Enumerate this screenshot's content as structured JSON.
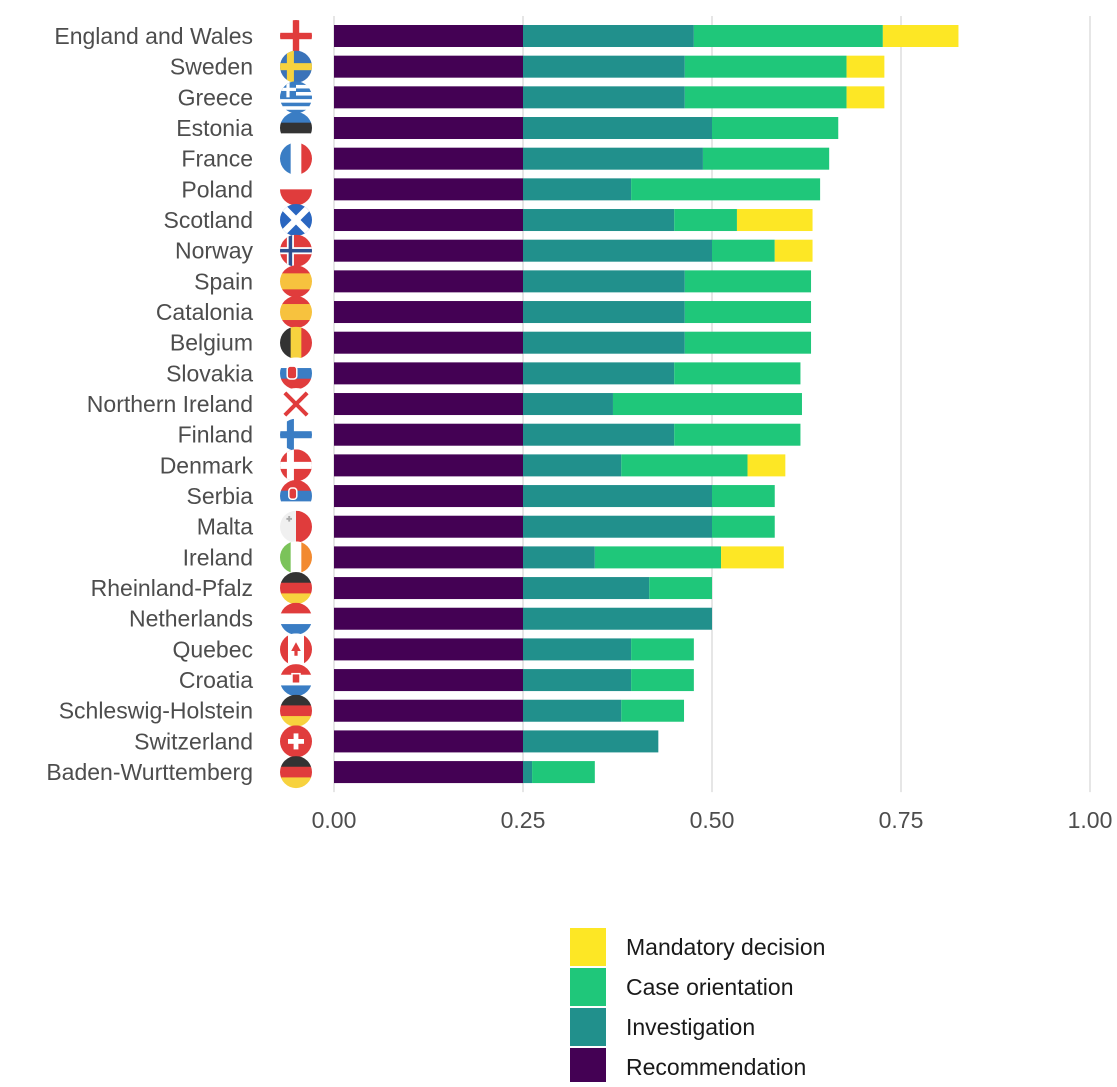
{
  "chart_data": {
    "type": "bar",
    "orientation": "horizontal",
    "stacked": true,
    "xlabel": "",
    "ylabel": "",
    "xlim": [
      0,
      1
    ],
    "x_ticks": [
      "0.00",
      "0.25",
      "0.50",
      "0.75",
      "1.00"
    ],
    "x_tick_values": [
      0,
      0.25,
      0.5,
      0.75,
      1.0
    ],
    "grid": true,
    "legend_position": "bottom",
    "categories": [
      "England and Wales",
      "Sweden",
      "Greece",
      "Estonia",
      "France",
      "Poland",
      "Scotland",
      "Norway",
      "Spain",
      "Catalonia",
      "Belgium",
      "Slovakia",
      "Northern Ireland",
      "Finland",
      "Denmark",
      "Serbia",
      "Malta",
      "Ireland",
      "Rheinland-Pfalz",
      "Netherlands",
      "Quebec",
      "Croatia",
      "Schleswig-Holstein",
      "Switzerland",
      "Baden-Wurttemberg"
    ],
    "series": [
      {
        "name": "Recommendation",
        "color": "#440154",
        "values": [
          0.25,
          0.25,
          0.25,
          0.25,
          0.25,
          0.25,
          0.25,
          0.25,
          0.25,
          0.25,
          0.25,
          0.25,
          0.25,
          0.25,
          0.25,
          0.25,
          0.25,
          0.25,
          0.25,
          0.25,
          0.25,
          0.25,
          0.25,
          0.25,
          0.25
        ]
      },
      {
        "name": "Investigation",
        "color": "#21908c",
        "values": [
          0.226,
          0.214,
          0.214,
          0.25,
          0.238,
          0.143,
          0.2,
          0.25,
          0.214,
          0.214,
          0.214,
          0.2,
          0.119,
          0.2,
          0.13,
          0.25,
          0.25,
          0.095,
          0.167,
          0.25,
          0.143,
          0.143,
          0.13,
          0.179,
          0.012
        ]
      },
      {
        "name": "Case orientation",
        "color": "#1fc77a",
        "values": [
          0.25,
          0.214,
          0.214,
          0.167,
          0.167,
          0.25,
          0.083,
          0.083,
          0.167,
          0.167,
          0.167,
          0.167,
          0.25,
          0.167,
          0.167,
          0.083,
          0.083,
          0.167,
          0.083,
          0.0,
          0.083,
          0.083,
          0.083,
          0.0,
          0.083
        ]
      },
      {
        "name": "Mandatory decision",
        "color": "#fde725",
        "values": [
          0.1,
          0.05,
          0.05,
          0.0,
          0.0,
          0.0,
          0.1,
          0.05,
          0.0,
          0.0,
          0.0,
          0.0,
          0.0,
          0.0,
          0.05,
          0.0,
          0.0,
          0.083,
          0.0,
          0.0,
          0.0,
          0.0,
          0.0,
          0.0,
          0.0
        ]
      }
    ],
    "legend_order": [
      "Mandatory decision",
      "Case orientation",
      "Investigation",
      "Recommendation"
    ],
    "flag_icons": [
      "england-flag-icon",
      "sweden-flag-icon",
      "greece-flag-icon",
      "estonia-flag-icon",
      "france-flag-icon",
      "poland-flag-icon",
      "scotland-flag-icon",
      "norway-flag-icon",
      "spain-flag-icon",
      "catalonia-flag-icon",
      "belgium-flag-icon",
      "slovakia-flag-icon",
      "northern-ireland-flag-icon",
      "finland-flag-icon",
      "denmark-flag-icon",
      "serbia-flag-icon",
      "malta-flag-icon",
      "ireland-flag-icon",
      "germany-flag-icon",
      "netherlands-flag-icon",
      "canada-flag-icon",
      "croatia-flag-icon",
      "germany-flag-icon",
      "switzerland-flag-icon",
      "germany-flag-icon"
    ]
  }
}
